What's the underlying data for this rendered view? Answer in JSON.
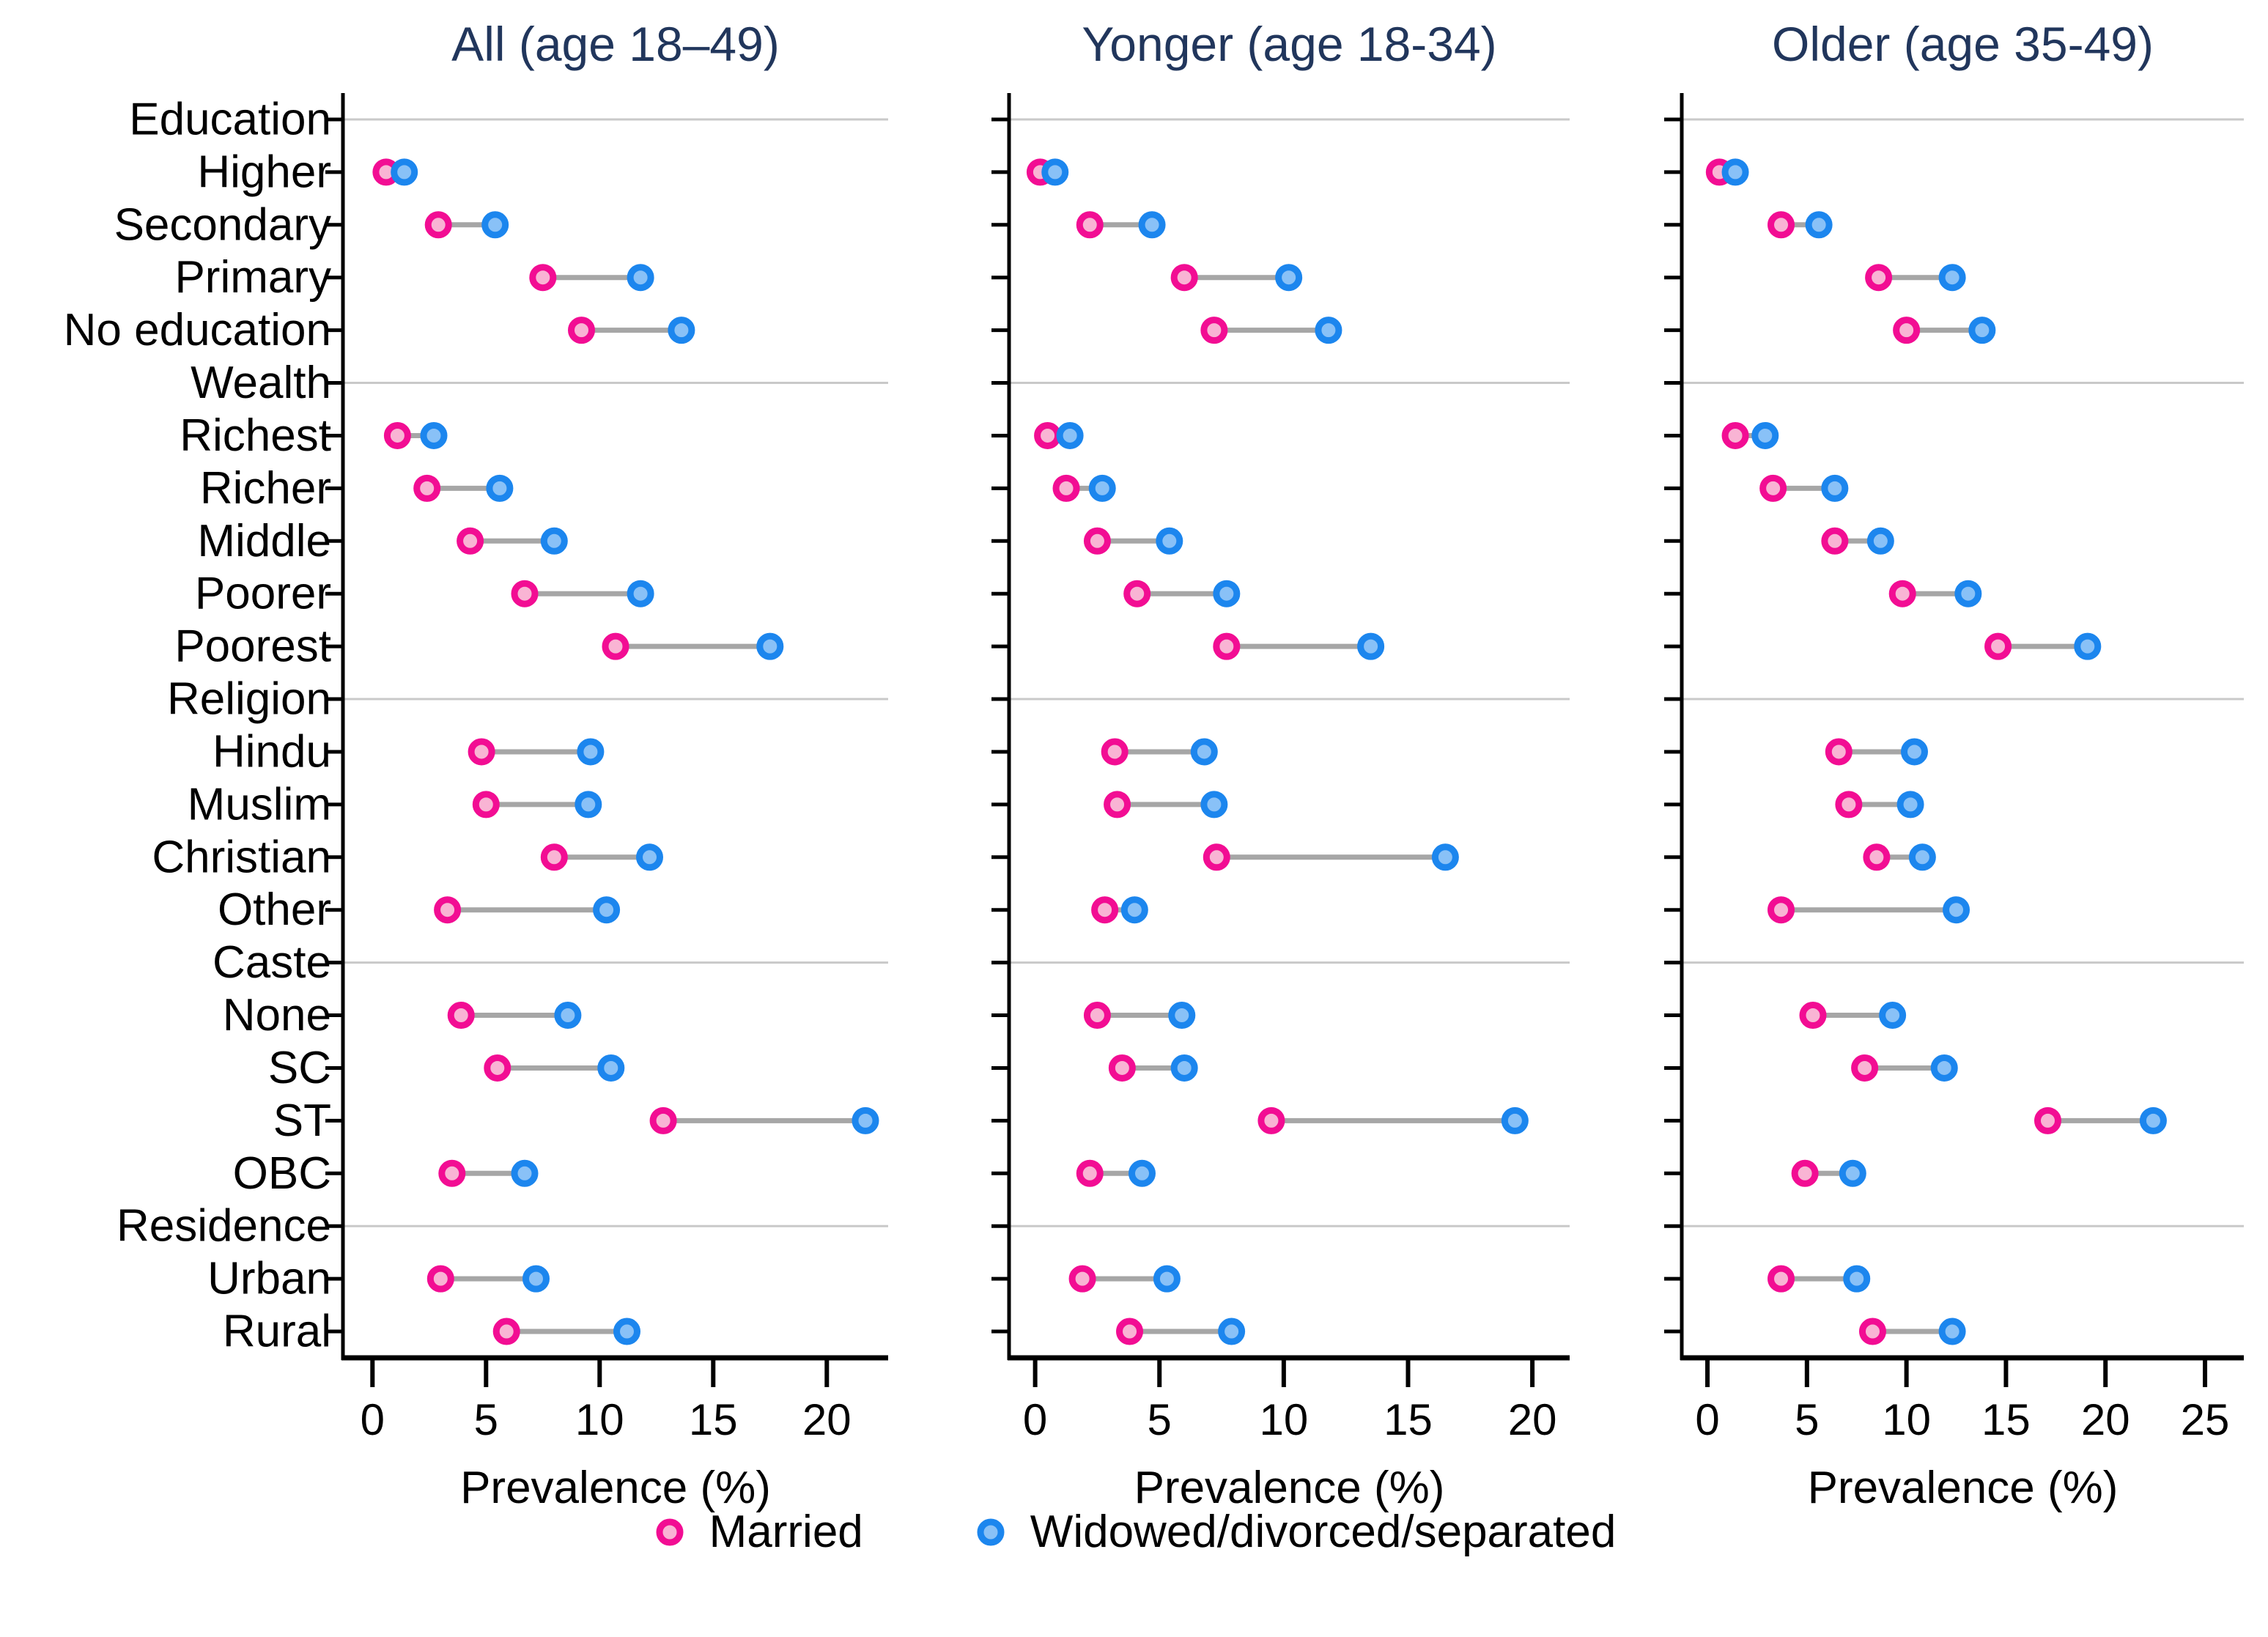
{
  "chart_data": {
    "type": "dumbbell",
    "xlabel": "Prevalence (%)",
    "legend_position": "bottom",
    "grid": "header-rows-only",
    "series": [
      {
        "name": "Married",
        "stroke": "#F20D93",
        "fill": "#F9B4D4"
      },
      {
        "name": "Widowed/divorced/separated",
        "stroke": "#1C86EE",
        "fill": "#89C1F7"
      }
    ],
    "colors": {
      "connector": "#A6A6A6",
      "gridline": "#C9C9C9",
      "axis": "#000000",
      "title": "#21365C"
    },
    "categories": [
      {
        "label": "Education",
        "header": true
      },
      {
        "label": "Higher"
      },
      {
        "label": "Secondary"
      },
      {
        "label": "Primary"
      },
      {
        "label": "No education"
      },
      {
        "label": "Wealth",
        "header": true
      },
      {
        "label": "Richest"
      },
      {
        "label": "Richer"
      },
      {
        "label": "Middle"
      },
      {
        "label": "Poorer"
      },
      {
        "label": "Poorest"
      },
      {
        "label": "Religion",
        "header": true
      },
      {
        "label": "Hindu"
      },
      {
        "label": "Muslim"
      },
      {
        "label": "Christian"
      },
      {
        "label": "Other"
      },
      {
        "label": "Caste",
        "header": true
      },
      {
        "label": "None"
      },
      {
        "label": "SC"
      },
      {
        "label": "ST"
      },
      {
        "label": "OBC"
      },
      {
        "label": "Residence",
        "header": true
      },
      {
        "label": "Urban"
      },
      {
        "label": "Rural"
      }
    ],
    "panels": [
      {
        "title": "All (age 18–49)",
        "ticks": [
          0,
          5,
          10,
          15,
          20
        ],
        "xmin": -1.3,
        "xmax": 22.7,
        "married": [
          null,
          0.6,
          2.9,
          7.5,
          9.2,
          null,
          1.1,
          2.4,
          4.3,
          6.7,
          10.7,
          null,
          4.8,
          5.0,
          8.0,
          3.3,
          null,
          3.9,
          5.5,
          12.8,
          3.5,
          null,
          3.0,
          5.9
        ],
        "widowed": [
          null,
          1.4,
          5.4,
          11.8,
          13.6,
          null,
          2.7,
          5.6,
          8.0,
          11.8,
          17.5,
          null,
          9.6,
          9.5,
          12.2,
          10.3,
          null,
          8.6,
          10.5,
          21.7,
          6.7,
          null,
          7.2,
          11.2
        ]
      },
      {
        "title": "Yonger (age 18-34)",
        "ticks": [
          0,
          5,
          10,
          15,
          20
        ],
        "xmin": -1.05,
        "xmax": 21.5,
        "married": [
          null,
          0.2,
          2.2,
          6.0,
          7.2,
          null,
          0.5,
          1.25,
          2.5,
          4.1,
          7.7,
          null,
          3.2,
          3.3,
          7.3,
          2.8,
          null,
          2.5,
          3.5,
          9.5,
          2.2,
          null,
          1.9,
          3.8
        ],
        "widowed": [
          null,
          0.8,
          4.7,
          10.2,
          11.8,
          null,
          1.4,
          2.7,
          5.4,
          7.7,
          13.5,
          null,
          6.8,
          7.2,
          16.5,
          4.0,
          null,
          5.9,
          6.0,
          19.3,
          4.3,
          null,
          5.3,
          7.9
        ]
      },
      {
        "title": "Older (age 35-49)",
        "ticks": [
          0,
          5,
          10,
          15,
          20,
          25
        ],
        "xmin": -1.29,
        "xmax": 26.95,
        "married": [
          null,
          0.6,
          3.7,
          8.6,
          10.0,
          null,
          1.4,
          3.3,
          6.4,
          9.8,
          14.6,
          null,
          6.6,
          7.1,
          8.5,
          3.7,
          null,
          5.3,
          7.9,
          17.1,
          4.9,
          null,
          3.7,
          8.3
        ],
        "widowed": [
          null,
          1.4,
          5.6,
          12.3,
          13.8,
          null,
          2.9,
          6.4,
          8.7,
          13.1,
          19.1,
          null,
          10.4,
          10.2,
          10.8,
          12.5,
          null,
          9.3,
          11.9,
          22.4,
          7.3,
          null,
          7.5,
          12.3
        ]
      }
    ]
  }
}
